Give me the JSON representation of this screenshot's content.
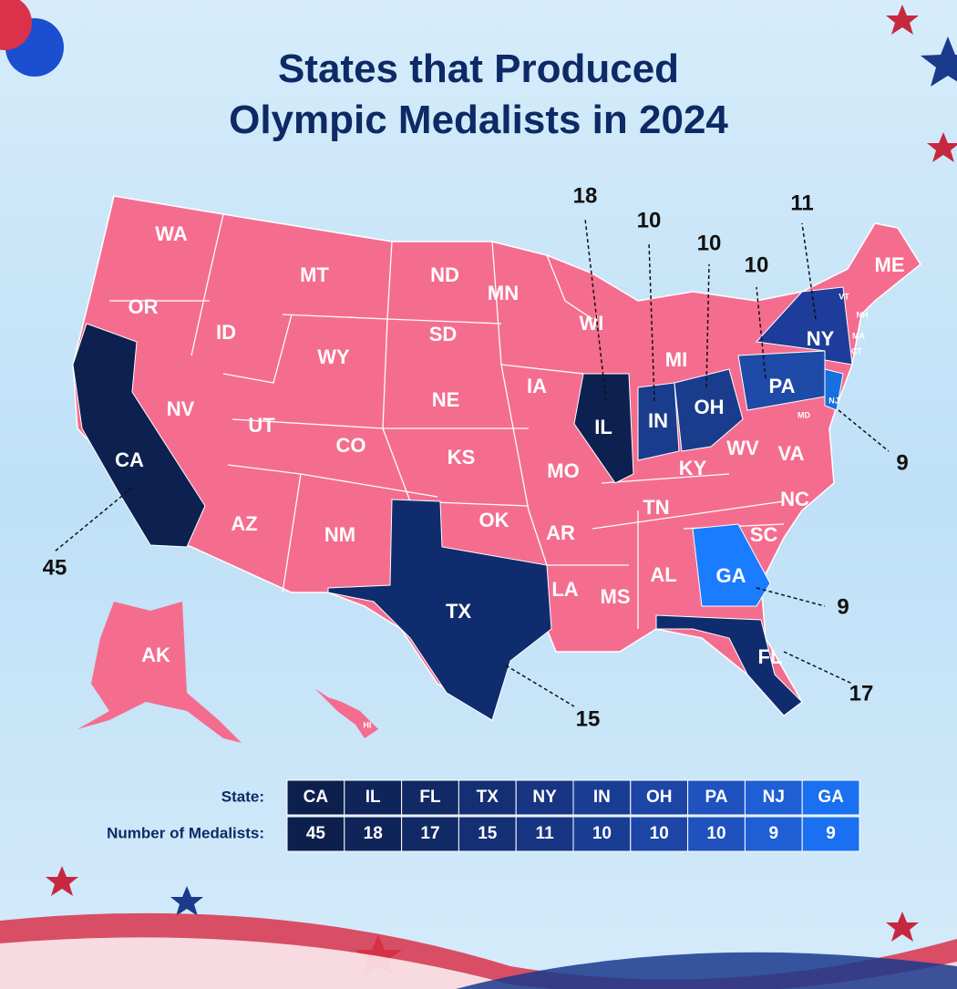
{
  "title": "States that Produced Olympic Medalists in 2024",
  "map": {
    "state_labels": [
      "WA",
      "OR",
      "CA",
      "NV",
      "ID",
      "MT",
      "WY",
      "UT",
      "AZ",
      "CO",
      "NM",
      "ND",
      "SD",
      "NE",
      "KS",
      "OK",
      "TX",
      "MN",
      "IA",
      "MO",
      "AR",
      "LA",
      "WI",
      "IL",
      "MI",
      "IN",
      "OH",
      "KY",
      "TN",
      "MS",
      "AL",
      "GA",
      "FL",
      "SC",
      "NC",
      "VA",
      "WV",
      "PA",
      "NY",
      "ME",
      "VT",
      "NH",
      "MA",
      "CT",
      "MD",
      "NJ",
      "AK",
      "HI"
    ],
    "callouts": [
      {
        "state": "CA",
        "value": 45
      },
      {
        "state": "IL",
        "value": 18
      },
      {
        "state": "FL",
        "value": 17
      },
      {
        "state": "TX",
        "value": 15
      },
      {
        "state": "NY",
        "value": 11
      },
      {
        "state": "IN",
        "value": 10
      },
      {
        "state": "OH",
        "value": 10
      },
      {
        "state": "PA",
        "value": 10
      },
      {
        "state": "NJ",
        "value": 9
      },
      {
        "state": "GA",
        "value": 9
      }
    ]
  },
  "table": {
    "row_headers": [
      "State:",
      "Number of Medalists:"
    ],
    "states": [
      "CA",
      "IL",
      "FL",
      "TX",
      "NY",
      "IN",
      "OH",
      "PA",
      "NJ",
      "GA"
    ],
    "counts": [
      45,
      18,
      17,
      15,
      11,
      10,
      10,
      10,
      9,
      9
    ]
  }
}
